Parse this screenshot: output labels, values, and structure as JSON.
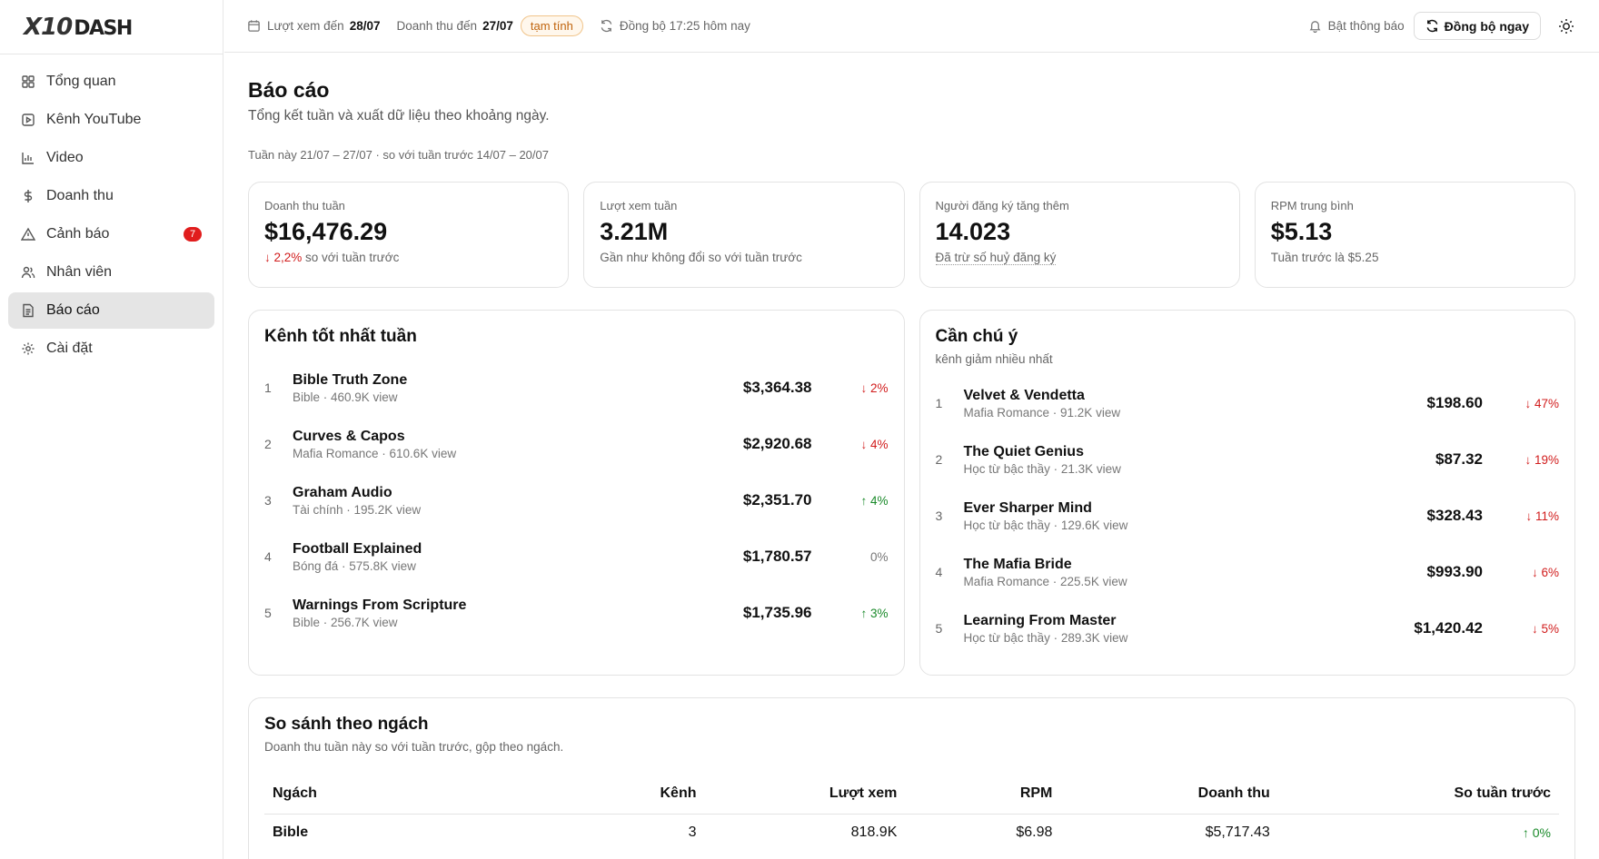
{
  "brand": {
    "x10": "X10",
    "dash": "DASH"
  },
  "sidebar": {
    "items": [
      {
        "label": "Tổng quan",
        "icon": "grid-icon"
      },
      {
        "label": "Kênh YouTube",
        "icon": "play-square-icon"
      },
      {
        "label": "Video",
        "icon": "bar-chart-icon"
      },
      {
        "label": "Doanh thu",
        "icon": "dollar-icon"
      },
      {
        "label": "Cảnh báo",
        "icon": "warning-icon",
        "badge": "7"
      },
      {
        "label": "Nhân viên",
        "icon": "users-icon"
      },
      {
        "label": "Báo cáo",
        "icon": "file-text-icon",
        "active": true
      },
      {
        "label": "Cài đặt",
        "icon": "gear-icon"
      }
    ]
  },
  "topbar": {
    "views_label": "Lượt xem đến",
    "views_date": "28/07",
    "revenue_label": "Doanh thu đến",
    "revenue_date": "27/07",
    "pill": "tạm tính",
    "sync_status": "Đồng bộ 17:25 hôm nay",
    "notify_label": "Bật thông báo",
    "sync_button": "Đồng bộ ngay"
  },
  "page": {
    "title": "Báo cáo",
    "subtitle": "Tổng kết tuần và xuất dữ liệu theo khoảng ngày.",
    "week_range": "Tuần này 21/07 – 27/07 · so với tuần trước 14/07 – 20/07"
  },
  "stats": [
    {
      "label": "Doanh thu tuần",
      "value": "$16,476.29",
      "change": "↓ 2,2%",
      "note": "so với tuần trước"
    },
    {
      "label": "Lượt xem tuần",
      "value": "3.21M",
      "note": "Gần như không đổi so với tuần trước"
    },
    {
      "label": "Người đăng ký tăng thêm",
      "value": "14.023",
      "note": "Đã trừ số huỷ đăng ký"
    },
    {
      "label": "RPM trung bình",
      "value": "$5.13",
      "note": "Tuần trước là $5.25"
    }
  ],
  "best": {
    "title": "Kênh tốt nhất tuần",
    "items": [
      {
        "rank": "1",
        "name": "Bible Truth Zone",
        "meta": "Bible · 460.9K view",
        "revenue": "$3,364.38",
        "change": "↓ 2%",
        "dir": "down"
      },
      {
        "rank": "2",
        "name": "Curves & Capos",
        "meta": "Mafia Romance · 610.6K view",
        "revenue": "$2,920.68",
        "change": "↓ 4%",
        "dir": "down"
      },
      {
        "rank": "3",
        "name": "Graham Audio",
        "meta": "Tài chính · 195.2K view",
        "revenue": "$2,351.70",
        "change": "↑ 4%",
        "dir": "up"
      },
      {
        "rank": "4",
        "name": "Football Explained",
        "meta": "Bóng đá · 575.8K view",
        "revenue": "$1,780.57",
        "change": "0%",
        "dir": "neutral"
      },
      {
        "rank": "5",
        "name": "Warnings From Scripture",
        "meta": "Bible · 256.7K view",
        "revenue": "$1,735.96",
        "change": "↑ 3%",
        "dir": "up"
      }
    ]
  },
  "attention": {
    "title": "Cần chú ý",
    "subtitle": "kênh giảm nhiều nhất",
    "items": [
      {
        "rank": "1",
        "name": "Velvet & Vendetta",
        "meta": "Mafia Romance · 91.2K view",
        "revenue": "$198.60",
        "change": "↓ 47%",
        "dir": "down"
      },
      {
        "rank": "2",
        "name": "The Quiet Genius",
        "meta": "Học từ bậc thầy · 21.3K view",
        "revenue": "$87.32",
        "change": "↓ 19%",
        "dir": "down"
      },
      {
        "rank": "3",
        "name": "Ever Sharper Mind",
        "meta": "Học từ bậc thầy · 129.6K view",
        "revenue": "$328.43",
        "change": "↓ 11%",
        "dir": "down"
      },
      {
        "rank": "4",
        "name": "The Mafia Bride",
        "meta": "Mafia Romance · 225.5K view",
        "revenue": "$993.90",
        "change": "↓ 6%",
        "dir": "down"
      },
      {
        "rank": "5",
        "name": "Learning From Master",
        "meta": "Học từ bậc thầy · 289.3K view",
        "revenue": "$1,420.42",
        "change": "↓ 5%",
        "dir": "down"
      }
    ]
  },
  "compare": {
    "title": "So sánh theo ngách",
    "subtitle": "Doanh thu tuần này so với tuần trước, gộp theo ngách.",
    "headers": [
      "Ngách",
      "Kênh",
      "Lượt xem",
      "RPM",
      "Doanh thu",
      "So tuần trước"
    ],
    "rows": [
      {
        "niche": "Bible",
        "channels": "3",
        "views": "818.9K",
        "rpm": "$6.98",
        "revenue": "$5,717.43",
        "change": "↑ 0%"
      }
    ]
  },
  "colors": {
    "down": "#d11c1c",
    "up": "#1a8a2a",
    "active_nav": "#e5e5e5",
    "badge": "#e11d1d",
    "pill": "#c0640d"
  }
}
